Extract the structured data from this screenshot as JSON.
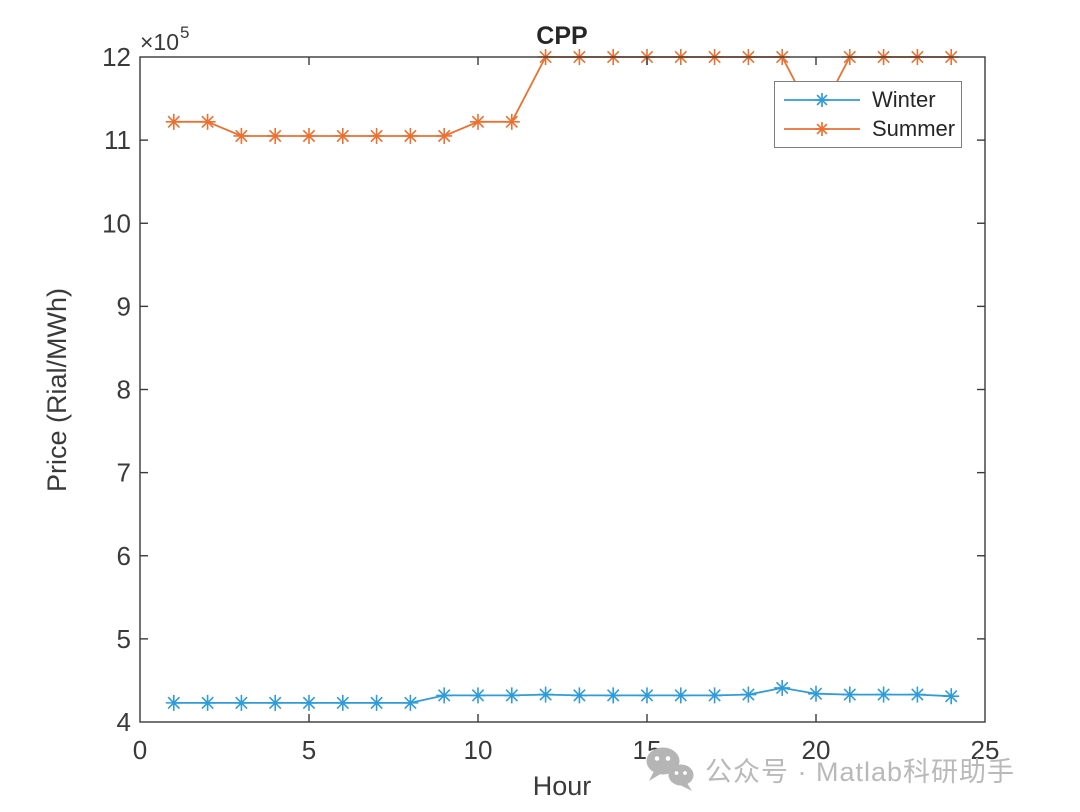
{
  "figure": {
    "background": "#ffffff"
  },
  "chart_data": {
    "type": "line",
    "title": "CPP",
    "xlabel": "Hour",
    "ylabel": "Price (Rial/MWh)",
    "y_offset": {
      "base": "×10",
      "exp": "5"
    },
    "unit_multiplier": 100000,
    "xlim": [
      0,
      25
    ],
    "ylim": [
      4,
      12
    ],
    "xticks": [
      0,
      5,
      10,
      15,
      20,
      25
    ],
    "yticks": [
      4,
      5,
      6,
      7,
      8,
      9,
      10,
      11,
      12
    ],
    "grid": false,
    "axis_color": "#3a3a3a",
    "x": [
      1,
      2,
      3,
      4,
      5,
      6,
      7,
      8,
      9,
      10,
      11,
      12,
      13,
      14,
      15,
      16,
      17,
      18,
      19,
      20,
      21,
      22,
      23,
      24
    ],
    "series": [
      {
        "name": "Winter",
        "color": "#2F9CD9",
        "marker": "asterisk",
        "values": [
          4.23,
          4.23,
          4.23,
          4.23,
          4.23,
          4.23,
          4.23,
          4.23,
          4.32,
          4.32,
          4.32,
          4.33,
          4.32,
          4.32,
          4.32,
          4.32,
          4.32,
          4.33,
          4.41,
          4.34,
          4.33,
          4.33,
          4.33,
          4.31
        ]
      },
      {
        "name": "Summer",
        "color": "#ED7031",
        "marker": "asterisk",
        "values": [
          11.22,
          11.22,
          11.05,
          11.05,
          11.05,
          11.05,
          11.05,
          11.05,
          11.05,
          11.22,
          11.22,
          12,
          12,
          12,
          12,
          12,
          12,
          12,
          12,
          11.22,
          12,
          12,
          12,
          12
        ]
      }
    ],
    "legend": {
      "position": "upper-right",
      "border_color": "#7f7f7f",
      "background": "#ffffff"
    }
  },
  "watermark": {
    "icon": "wechat-icon",
    "text": "公众号 · Matlab科研助手",
    "color": "#b9b9b9"
  }
}
